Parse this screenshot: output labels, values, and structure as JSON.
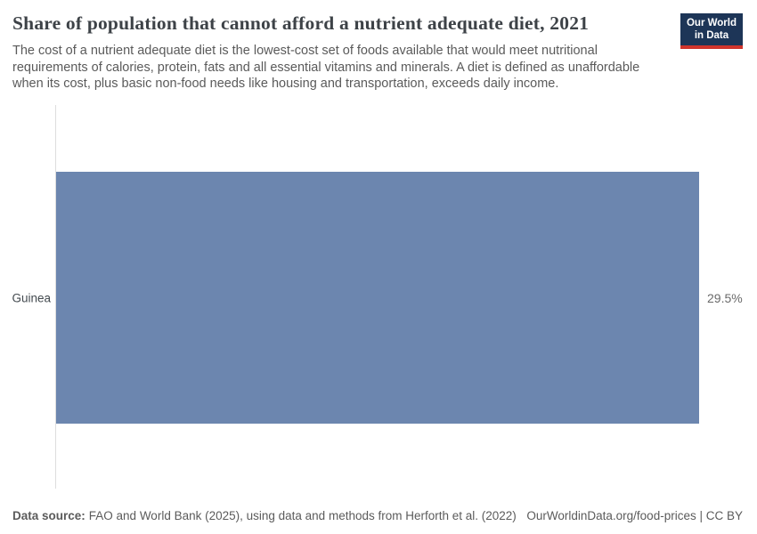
{
  "header": {
    "title": "Share of population that cannot afford a nutrient adequate diet, 2021",
    "subtitle_lines": [
      "The cost of a nutrient adequate diet is the lowest-cost set of foods available that would meet nutritional",
      "requirements of calories, protein, fats and all essential vitamins and minerals. A diet is defined as unaffordable",
      "when its cost, plus basic non-food needs like housing and transportation, exceeds daily income."
    ],
    "logo": {
      "line1": "Our World",
      "line2": "in Data"
    }
  },
  "chart_data": {
    "type": "bar",
    "orientation": "horizontal",
    "title": "Share of population that cannot afford a nutrient adequate diet, 2021",
    "categories": [
      "Guinea"
    ],
    "values": [
      29.5
    ],
    "value_labels": [
      "29.5%"
    ],
    "unit": "%",
    "xlim": [
      0,
      29.5
    ],
    "grid": false,
    "legend": "none",
    "bar_color": "#6c86af"
  },
  "footer": {
    "source_label": "Data source:",
    "source_text": "FAO and World Bank (2025), using data and methods from Herforth et al. (2022)",
    "url_text": "OurWorldinData.org/food-prices",
    "separator": " | ",
    "license_text": "CC BY"
  },
  "colors": {
    "bar": "#6c86af",
    "axis_line": "#dedede",
    "logo_background": "#1d3557",
    "logo_underline": "#d0342c",
    "title_text": "#3d4247",
    "subtitle_text": "#5a5a5a",
    "footer_text": "#5b5b5b"
  }
}
